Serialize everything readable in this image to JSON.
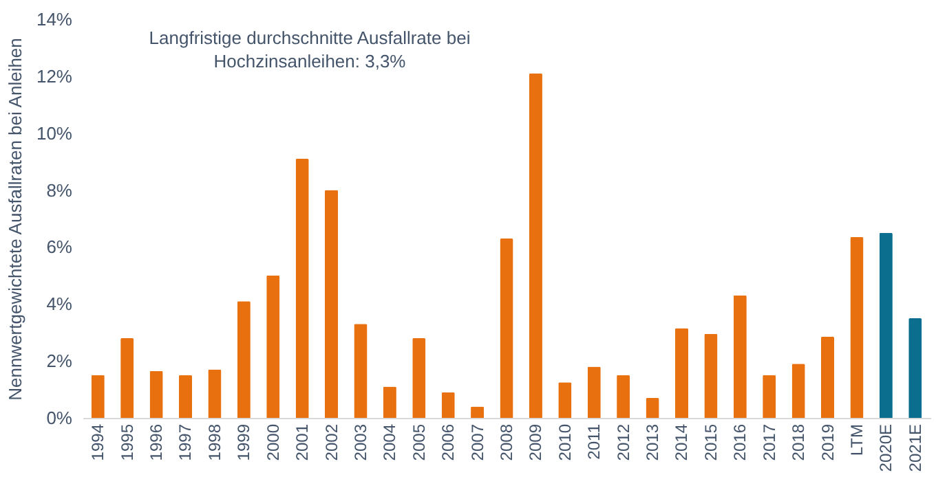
{
  "chart_data": {
    "type": "bar",
    "ylabel": "Nennwertgewichtete Ausfallraten bei Anleihen",
    "annotations": [
      "Langfristige durchschnitte Ausfallrate bei\nHochzinsanleihen: 3,3%"
    ],
    "categories": [
      "1994",
      "1995",
      "1996",
      "1997",
      "1998",
      "1999",
      "2000",
      "2001",
      "2002",
      "2003",
      "2004",
      "2005",
      "2006",
      "2007",
      "2008",
      "2009",
      "2010",
      "2011",
      "2012",
      "2013",
      "2014",
      "2015",
      "2016",
      "2017",
      "2018",
      "2019",
      "LTM",
      "2020E",
      "2021E"
    ],
    "values": [
      1.5,
      2.8,
      1.65,
      1.5,
      1.7,
      4.1,
      5.0,
      9.1,
      8.0,
      3.3,
      1.1,
      2.8,
      0.9,
      0.4,
      6.3,
      12.1,
      1.25,
      1.8,
      1.5,
      0.7,
      3.15,
      2.95,
      4.3,
      1.5,
      1.9,
      2.85,
      6.35,
      6.5,
      3.5
    ],
    "colors": [
      "#e8700f",
      "#e8700f",
      "#e8700f",
      "#e8700f",
      "#e8700f",
      "#e8700f",
      "#e8700f",
      "#e8700f",
      "#e8700f",
      "#e8700f",
      "#e8700f",
      "#e8700f",
      "#e8700f",
      "#e8700f",
      "#e8700f",
      "#e8700f",
      "#e8700f",
      "#e8700f",
      "#e8700f",
      "#e8700f",
      "#e8700f",
      "#e8700f",
      "#e8700f",
      "#e8700f",
      "#e8700f",
      "#e8700f",
      "#e8700f",
      "#0b6e8f",
      "#0b6e8f"
    ],
    "ylim": [
      0,
      14
    ],
    "yticks": [
      {
        "value": 0,
        "label": "0%"
      },
      {
        "value": 2,
        "label": "2%"
      },
      {
        "value": 4,
        "label": "4%"
      },
      {
        "value": 6,
        "label": "6%"
      },
      {
        "value": 8,
        "label": "8%"
      },
      {
        "value": 10,
        "label": "10%"
      },
      {
        "value": 12,
        "label": "12%"
      },
      {
        "value": 14,
        "label": "14%"
      }
    ],
    "grid": false
  }
}
